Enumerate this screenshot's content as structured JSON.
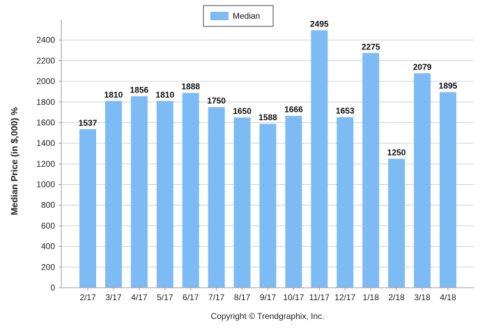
{
  "chart_data": {
    "type": "bar",
    "categories": [
      "2/17",
      "3/17",
      "4/17",
      "5/17",
      "6/17",
      "7/17",
      "8/17",
      "9/17",
      "10/17",
      "11/17",
      "12/17",
      "1/18",
      "2/18",
      "3/18",
      "4/18"
    ],
    "series": [
      {
        "name": "Median",
        "values": [
          1537,
          1810,
          1856,
          1810,
          1888,
          1750,
          1650,
          1588,
          1666,
          2495,
          1653,
          2275,
          1250,
          2079,
          1895
        ]
      }
    ],
    "data_labels": [
      "1537",
      "1810",
      "1856",
      "1810",
      "1888",
      "1750",
      "1650",
      "1588",
      "1666",
      "2495",
      "1653",
      "2275",
      "1250",
      "2079",
      "1895"
    ],
    "xlabel": "",
    "ylabel": "Median Price (in $,000) %",
    "ylim": [
      0,
      2600
    ],
    "yticks": [
      0,
      200,
      400,
      600,
      800,
      1000,
      1200,
      1400,
      1600,
      1800,
      2000,
      2200,
      2400
    ],
    "grid": true,
    "legend_position": "top-center",
    "bar_color": "#7dbbf4",
    "footer": "Copyright © Trendgraphix, Inc."
  }
}
